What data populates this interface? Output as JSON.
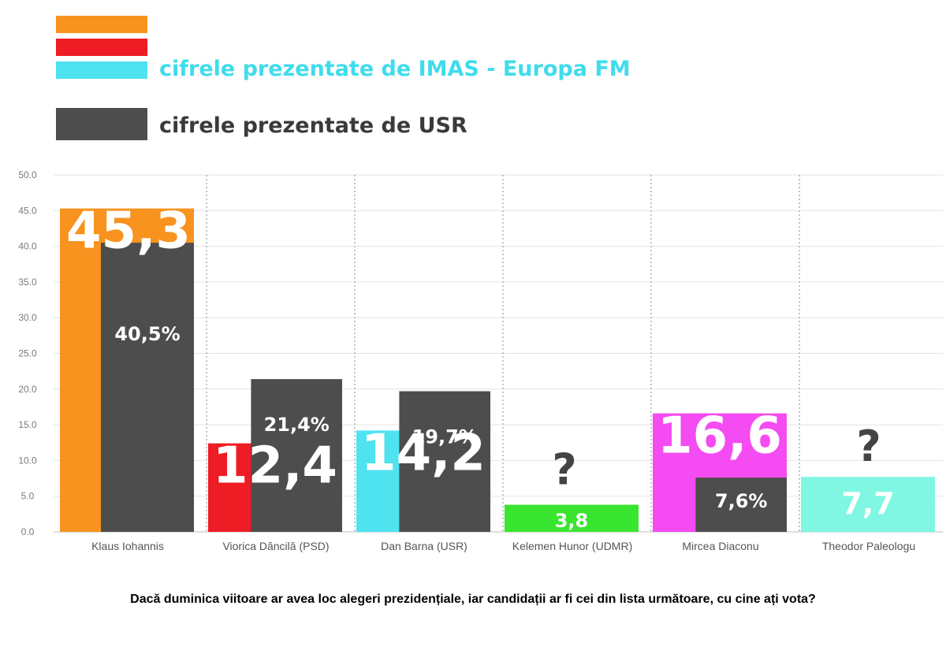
{
  "legend": {
    "imas_label": "cifrele prezentate de IMAS - Europa FM",
    "usr_label": "cifrele prezentate de USR",
    "swatch_colors": [
      "#F7931E",
      "#EE1C25",
      "#4FE3F0"
    ],
    "usr_color": "#4D4D4D",
    "imas_label_color": "#3FDCEB"
  },
  "chart_data": {
    "type": "bar",
    "ylim": [
      0,
      50
    ],
    "yticks": [
      "0.0",
      "5.0",
      "10.0",
      "15.0",
      "20.0",
      "25.0",
      "30.0",
      "35.0",
      "40.0",
      "45.0",
      "50.0"
    ],
    "grid": true,
    "categories": [
      "Klaus Iohannis",
      "Viorica Dăncilă (PSD)",
      "Dan Barna (USR)",
      "Kelemen Hunor (UDMR)",
      "Mircea Diaconu",
      "Theodor Paleologu"
    ],
    "series": [
      {
        "name": "cifrele prezentate de IMAS - Europa FM",
        "values": [
          45.3,
          12.4,
          14.2,
          3.8,
          16.6,
          7.7
        ],
        "labels": [
          "45,3",
          "12,4",
          "14,2",
          "3,8",
          "16,6",
          "7,7"
        ],
        "colors": [
          "#F7931E",
          "#EE1C25",
          "#4FE3F0",
          "#39E52F",
          "#F54BF2",
          "#7FF7E3"
        ]
      },
      {
        "name": "cifrele prezentate de USR",
        "values": [
          40.5,
          21.4,
          19.7,
          null,
          7.6,
          null
        ],
        "labels": [
          "40,5%",
          "21,4%",
          "19,7%",
          "?",
          "7,6%",
          "?"
        ],
        "color": "#4D4D4D"
      }
    ],
    "question": "Dacă duminica viitoare ar avea loc alegeri prezidențiale, iar candidații ar fi cei din lista următoare, cu cine ați vota?"
  }
}
